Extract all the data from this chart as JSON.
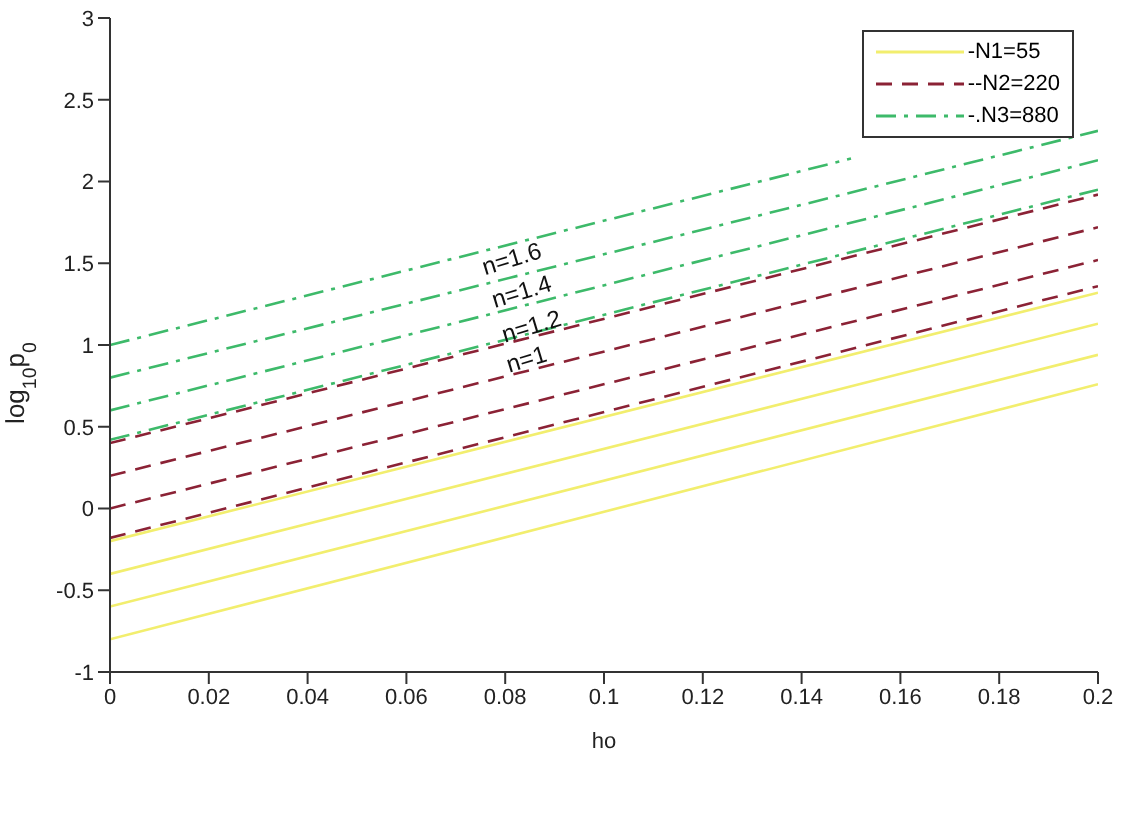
{
  "chart_data": {
    "type": "line",
    "xlabel": "ho",
    "ylabel": "log$_{10}$p$_{0}$",
    "xlim": [
      0,
      0.2
    ],
    "ylim": [
      -1,
      3
    ],
    "xticks": [
      0,
      0.02,
      0.04,
      0.06,
      0.08,
      0.1,
      0.12,
      0.14,
      0.16,
      0.18,
      0.2
    ],
    "yticks": [
      -1,
      -0.5,
      0,
      0.5,
      1,
      1.5,
      2,
      2.5,
      3
    ],
    "legend": "top right",
    "marker": "none",
    "series": [
      {
        "name": "-N1=55",
        "color": "#f2ee6e",
        "line_style": "solid",
        "x": [
          0,
          0.2
        ],
        "values": [
          -0.2,
          1.32
        ]
      },
      {
        "color": "#f2ee6e",
        "line_style": "solid",
        "x": [
          0,
          0.2
        ],
        "values": [
          -0.4,
          1.13
        ]
      },
      {
        "color": "#f2ee6e",
        "line_style": "solid",
        "x": [
          0,
          0.2
        ],
        "values": [
          -0.6,
          0.94
        ]
      },
      {
        "color": "#f2ee6e",
        "line_style": "solid",
        "x": [
          0,
          0.2
        ],
        "values": [
          -0.8,
          0.76
        ]
      },
      {
        "name": "--N2=220",
        "color": "#8b2235",
        "line_style": "dashed",
        "x": [
          0,
          0.2
        ],
        "values": [
          0.4,
          1.92
        ]
      },
      {
        "color": "#8b2235",
        "line_style": "dashed",
        "x": [
          0,
          0.2
        ],
        "values": [
          0.2,
          1.72
        ]
      },
      {
        "color": "#8b2235",
        "line_style": "dashed",
        "x": [
          0,
          0.2
        ],
        "values": [
          0,
          1.52
        ]
      },
      {
        "color": "#8b2235",
        "line_style": "dashed",
        "x": [
          0,
          0.2
        ],
        "values": [
          -0.18,
          1.36
        ]
      },
      {
        "name": "-.N3=880",
        "color": "#3dba6a",
        "line_style": "dashdot",
        "x": [
          0,
          0.15
        ],
        "values": [
          1.0,
          2.14
        ]
      },
      {
        "color": "#3dba6a",
        "line_style": "dashdot",
        "x": [
          0,
          0.2
        ],
        "values": [
          0.8,
          2.31
        ]
      },
      {
        "color": "#3dba6a",
        "line_style": "dashdot",
        "x": [
          0,
          0.2
        ],
        "values": [
          0.6,
          2.13
        ]
      },
      {
        "color": "#3dba6a",
        "line_style": "dashdot",
        "x": [
          0,
          0.2
        ],
        "values": [
          0.42,
          1.95
        ]
      }
    ],
    "annotations": [
      {
        "text": "n=1.6",
        "x": 0.082,
        "y": 1.62
      },
      {
        "text": "n=1.4",
        "x": 0.084,
        "y": 1.44
      },
      {
        "text": "n=1.2",
        "x": 0.086,
        "y": 1.25
      },
      {
        "text": "n=1",
        "x": 0.085,
        "y": 1.07
      }
    ]
  }
}
